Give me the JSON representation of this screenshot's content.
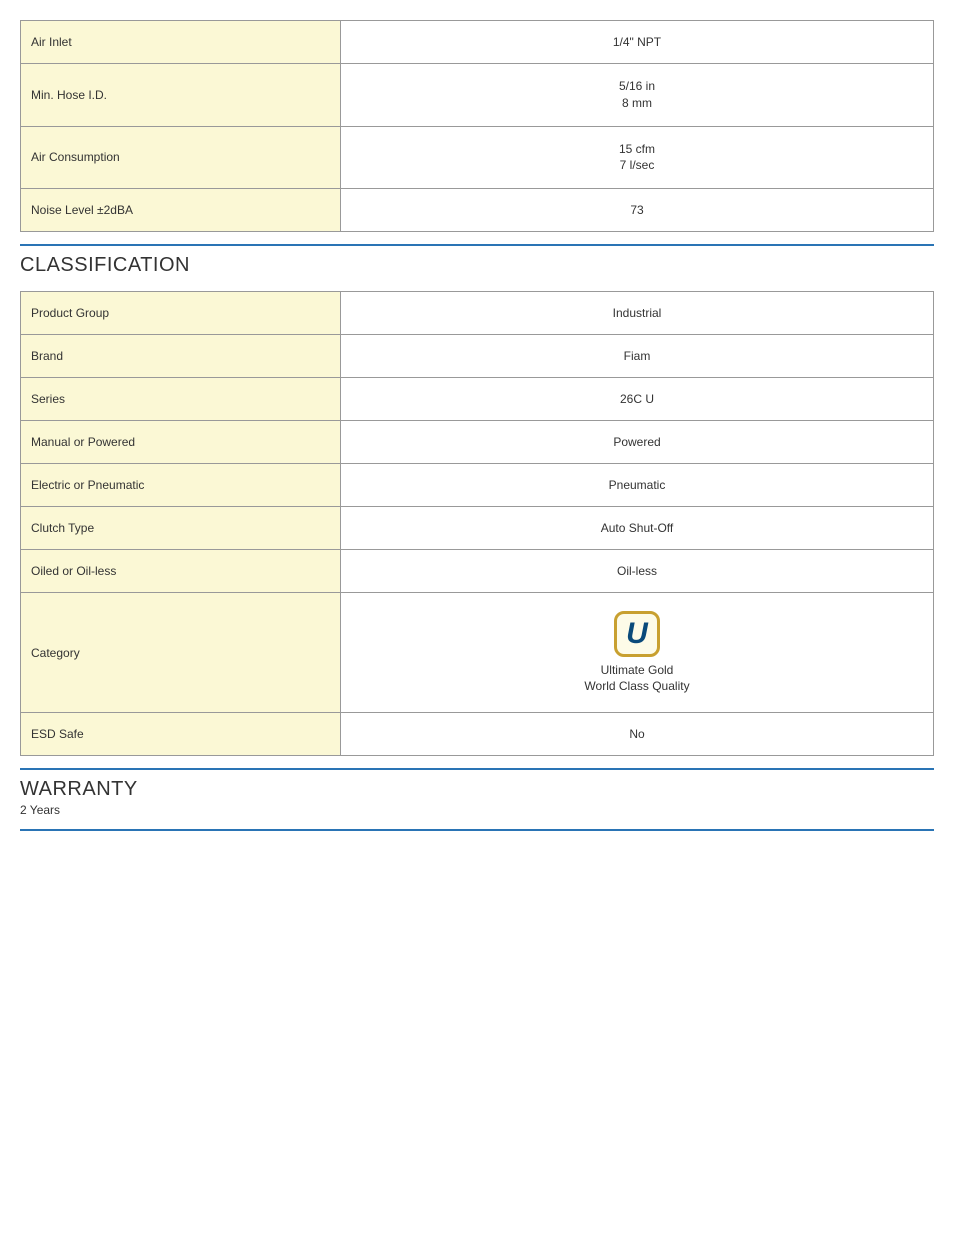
{
  "specs_top": [
    {
      "label": "Air Inlet",
      "value": "1/4\" NPT"
    },
    {
      "label": "Min. Hose I.D.",
      "value": "5/16 in\n8 mm"
    },
    {
      "label": "Air Consumption",
      "value": "15 cfm\n7 l/sec"
    },
    {
      "label": "Noise Level ±2dBA",
      "value": "73"
    }
  ],
  "classification": {
    "title": "CLASSIFICATION",
    "rows": [
      {
        "label": "Product Group",
        "value": "Industrial"
      },
      {
        "label": "Brand",
        "value": "Fiam"
      },
      {
        "label": "Series",
        "value": "26C U"
      },
      {
        "label": "Manual or Powered",
        "value": "Powered"
      },
      {
        "label": "Electric or Pneumatic",
        "value": "Pneumatic"
      },
      {
        "label": "Clutch Type",
        "value": "Auto Shut-Off"
      },
      {
        "label": "Oiled or Oil-less",
        "value": "Oil-less"
      }
    ],
    "category": {
      "label": "Category",
      "icon_letter": "U",
      "icon_border_color": "#c8a030",
      "icon_bg_color": "#fdfbe8",
      "icon_letter_color": "#0a4a7a",
      "caption_line1": "Ultimate Gold",
      "caption_line2": "World Class Quality"
    },
    "esd": {
      "label": "ESD Safe",
      "value": "No"
    }
  },
  "warranty": {
    "title": "WARRANTY",
    "value": "2 Years"
  },
  "colors": {
    "label_bg": "#fbf8d5",
    "border": "#999999",
    "divider": "#2a74b5",
    "text": "#333333"
  }
}
